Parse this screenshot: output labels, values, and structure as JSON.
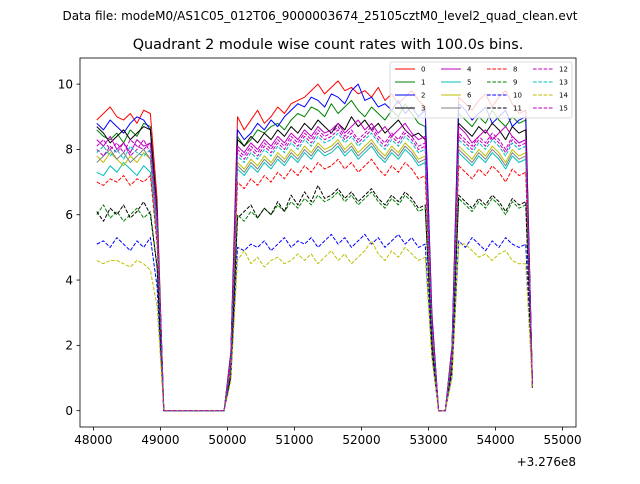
{
  "suptitle": "Data file: modeM0/AS1C05_012T06_9000003674_25105cztM0_level2_quad_clean.evt",
  "chart_data": {
    "type": "line",
    "title": "Quadrant 2 module wise count rates with 100.0s bins.",
    "xlabel": "",
    "ylabel": "",
    "x_offset_label": "+3.276e8",
    "xlim": [
      47800,
      55200
    ],
    "ylim": [
      -0.5,
      10.8
    ],
    "xticks": [
      "48000",
      "49000",
      "50000",
      "51000",
      "52000",
      "53000",
      "54000",
      "55000"
    ],
    "yticks": [
      "0",
      "2",
      "4",
      "6",
      "8",
      "10"
    ],
    "grid": false,
    "legend_position": "top-right",
    "x_start": 48050,
    "x_step": 100,
    "segments": [
      {
        "from": 48050,
        "to": 48850,
        "level": "high"
      },
      {
        "from": 48950,
        "to": 50050,
        "level": "zero"
      },
      {
        "from": 50150,
        "to": 53350,
        "level": "high"
      },
      {
        "from": 53450,
        "to": 53650,
        "level": "zero"
      },
      {
        "from": 53750,
        "to": 54850,
        "level": "high"
      }
    ],
    "series": [
      {
        "name": "0",
        "color": "#ff0000",
        "dash": false,
        "values": [
          8.9,
          9.1,
          9.3,
          9.0,
          8.9,
          9.1,
          8.8,
          9.2,
          9.1,
          6.5,
          0.0,
          0.0,
          0.0,
          0.0,
          0.0,
          0.0,
          0.0,
          0.0,
          0.0,
          0.0,
          1.8,
          9.0,
          8.6,
          8.9,
          9.2,
          8.8,
          9.0,
          9.3,
          9.1,
          9.4,
          9.5,
          9.6,
          9.8,
          10.0,
          9.7,
          9.9,
          10.1,
          9.8,
          9.9,
          9.7,
          9.8,
          9.6,
          9.9,
          9.5,
          9.7,
          9.4,
          9.6,
          9.8,
          9.5,
          9.3,
          3.0,
          0.0,
          0.0,
          2.0,
          9.6,
          9.4,
          9.2,
          9.5,
          9.7,
          9.3,
          9.6,
          9.8,
          9.4,
          9.1,
          9.2,
          0.8
        ]
      },
      {
        "name": "1",
        "color": "#008000",
        "dash": false,
        "values": [
          8.6,
          8.4,
          8.3,
          8.5,
          8.2,
          8.6,
          8.4,
          8.8,
          8.7,
          6.2,
          0.0,
          0.0,
          0.0,
          0.0,
          0.0,
          0.0,
          0.0,
          0.0,
          0.0,
          0.0,
          1.7,
          8.4,
          8.1,
          8.3,
          8.6,
          8.5,
          8.7,
          8.8,
          8.6,
          8.9,
          9.1,
          9.0,
          9.3,
          9.2,
          9.0,
          9.4,
          9.1,
          9.3,
          9.5,
          9.2,
          9.0,
          9.3,
          9.1,
          8.9,
          9.2,
          9.0,
          9.4,
          9.1,
          8.8,
          8.7,
          2.8,
          0.0,
          0.0,
          1.9,
          9.1,
          8.9,
          8.7,
          9.0,
          8.8,
          9.2,
          8.9,
          8.7,
          9.0,
          8.8,
          8.9,
          0.8
        ]
      },
      {
        "name": "2",
        "color": "#0000ff",
        "dash": false,
        "values": [
          8.8,
          8.6,
          8.9,
          8.7,
          8.5,
          8.8,
          9.0,
          8.9,
          8.6,
          6.1,
          0.0,
          0.0,
          0.0,
          0.0,
          0.0,
          0.0,
          0.0,
          0.0,
          0.0,
          0.0,
          1.7,
          8.6,
          8.3,
          8.5,
          8.8,
          8.6,
          8.9,
          8.7,
          9.0,
          9.2,
          9.4,
          9.3,
          9.6,
          9.5,
          9.3,
          9.7,
          9.6,
          9.4,
          9.8,
          10.0,
          9.5,
          9.6,
          9.3,
          9.4,
          9.2,
          9.5,
          9.1,
          9.3,
          9.0,
          9.2,
          2.9,
          0.0,
          0.0,
          1.9,
          9.4,
          9.2,
          8.9,
          9.1,
          9.3,
          8.8,
          9.0,
          9.2,
          8.7,
          8.9,
          9.0,
          0.8
        ]
      },
      {
        "name": "3",
        "color": "#000000",
        "dash": false,
        "values": [
          8.7,
          8.5,
          8.2,
          8.4,
          8.6,
          8.3,
          8.5,
          8.7,
          8.6,
          6.0,
          0.0,
          0.0,
          0.0,
          0.0,
          0.0,
          0.0,
          0.0,
          0.0,
          0.0,
          0.0,
          1.6,
          8.3,
          8.1,
          8.4,
          8.2,
          8.5,
          8.3,
          8.6,
          8.4,
          8.7,
          8.5,
          8.8,
          8.6,
          8.9,
          8.7,
          8.5,
          8.8,
          8.6,
          9.0,
          8.7,
          8.9,
          8.6,
          8.8,
          8.5,
          8.7,
          8.9,
          8.6,
          8.4,
          8.5,
          8.3,
          2.7,
          0.0,
          0.0,
          1.8,
          8.8,
          8.6,
          8.4,
          8.7,
          8.5,
          8.8,
          8.6,
          8.3,
          8.7,
          8.5,
          8.6,
          0.8
        ]
      },
      {
        "name": "4",
        "color": "#bf00bf",
        "dash": false,
        "values": [
          8.3,
          8.1,
          8.4,
          8.0,
          8.2,
          7.9,
          8.3,
          8.1,
          8.2,
          5.9,
          0.0,
          0.0,
          0.0,
          0.0,
          0.0,
          0.0,
          0.0,
          0.0,
          0.0,
          0.0,
          1.6,
          8.1,
          7.9,
          8.2,
          8.0,
          8.3,
          8.1,
          8.4,
          8.2,
          8.5,
          8.3,
          8.6,
          8.4,
          8.7,
          8.5,
          8.6,
          8.8,
          8.5,
          8.7,
          8.9,
          8.6,
          8.8,
          8.5,
          8.7,
          8.4,
          8.6,
          8.8,
          8.5,
          8.3,
          8.4,
          2.7,
          0.0,
          0.0,
          1.8,
          8.7,
          8.5,
          8.2,
          8.4,
          8.6,
          8.3,
          8.5,
          8.7,
          8.4,
          8.2,
          8.3,
          0.8
        ]
      },
      {
        "name": "5",
        "color": "#00bfbf",
        "dash": false,
        "values": [
          7.3,
          7.2,
          7.5,
          7.3,
          7.6,
          7.4,
          7.2,
          7.5,
          7.3,
          5.3,
          0.0,
          0.0,
          0.0,
          0.0,
          0.0,
          0.0,
          0.0,
          0.0,
          0.0,
          0.0,
          1.4,
          7.4,
          7.2,
          7.5,
          7.3,
          7.6,
          7.4,
          7.7,
          7.5,
          7.8,
          7.6,
          7.9,
          7.7,
          8.0,
          7.8,
          7.9,
          8.1,
          7.8,
          8.0,
          7.7,
          7.9,
          8.1,
          7.8,
          7.6,
          7.9,
          7.7,
          8.0,
          7.8,
          7.5,
          7.6,
          2.4,
          0.0,
          0.0,
          1.6,
          7.9,
          7.7,
          7.5,
          7.8,
          7.6,
          7.9,
          7.7,
          7.4,
          7.8,
          7.6,
          7.7,
          0.7
        ]
      },
      {
        "name": "6",
        "color": "#bfbf00",
        "dash": false,
        "values": [
          7.8,
          7.6,
          7.9,
          7.7,
          7.5,
          7.8,
          7.6,
          7.9,
          7.7,
          5.6,
          0.0,
          0.0,
          0.0,
          0.0,
          0.0,
          0.0,
          0.0,
          0.0,
          0.0,
          0.0,
          1.5,
          7.6,
          7.4,
          7.7,
          7.5,
          7.8,
          7.6,
          7.9,
          7.7,
          8.0,
          7.8,
          8.1,
          7.9,
          8.2,
          8.0,
          8.1,
          8.3,
          8.0,
          8.2,
          7.9,
          8.1,
          8.3,
          8.0,
          7.8,
          8.1,
          7.9,
          8.2,
          8.0,
          7.7,
          7.8,
          2.5,
          0.0,
          0.0,
          1.7,
          8.1,
          7.9,
          7.7,
          8.0,
          7.8,
          8.1,
          7.9,
          7.6,
          8.0,
          7.8,
          7.9,
          0.7
        ]
      },
      {
        "name": "7",
        "color": "#808080",
        "dash": false,
        "values": [
          7.6,
          7.8,
          8.0,
          7.7,
          7.9,
          7.6,
          7.8,
          8.0,
          7.7,
          5.5,
          0.0,
          0.0,
          0.0,
          0.0,
          0.0,
          0.0,
          0.0,
          0.0,
          0.0,
          0.0,
          1.5,
          7.5,
          7.3,
          7.6,
          7.4,
          7.7,
          7.5,
          7.8,
          7.6,
          7.9,
          7.7,
          8.0,
          7.8,
          8.1,
          7.9,
          8.0,
          8.2,
          7.9,
          8.1,
          7.8,
          8.0,
          8.2,
          7.9,
          7.7,
          8.0,
          7.8,
          8.1,
          7.9,
          7.6,
          7.7,
          2.5,
          0.0,
          0.0,
          1.7,
          8.0,
          7.8,
          7.6,
          7.9,
          7.7,
          8.0,
          7.8,
          7.5,
          7.9,
          7.7,
          7.8,
          0.7
        ]
      },
      {
        "name": "8",
        "color": "#ff0000",
        "dash": true,
        "values": [
          7.0,
          6.9,
          7.1,
          7.0,
          7.2,
          6.9,
          7.1,
          7.0,
          7.2,
          5.1,
          0.0,
          0.0,
          0.0,
          0.0,
          0.0,
          0.0,
          0.0,
          0.0,
          0.0,
          0.0,
          1.3,
          7.0,
          6.8,
          7.1,
          6.9,
          7.2,
          7.0,
          7.3,
          7.1,
          7.4,
          7.2,
          7.5,
          7.3,
          7.6,
          7.4,
          7.5,
          7.7,
          7.4,
          7.6,
          7.3,
          7.5,
          7.7,
          7.4,
          7.2,
          7.5,
          7.3,
          7.6,
          7.4,
          7.1,
          7.2,
          2.3,
          0.0,
          0.0,
          1.5,
          7.5,
          7.3,
          7.1,
          7.4,
          7.2,
          7.5,
          7.3,
          7.0,
          7.4,
          7.2,
          7.3,
          0.7
        ]
      },
      {
        "name": "9",
        "color": "#008000",
        "dash": true,
        "values": [
          6.0,
          6.3,
          5.9,
          6.1,
          5.8,
          6.0,
          6.2,
          5.9,
          6.1,
          4.4,
          0.0,
          0.0,
          0.0,
          0.0,
          0.0,
          0.0,
          0.0,
          0.0,
          0.0,
          0.0,
          1.1,
          6.0,
          5.8,
          6.1,
          5.9,
          6.2,
          6.0,
          6.3,
          6.1,
          6.4,
          6.2,
          6.5,
          6.3,
          6.6,
          6.4,
          6.5,
          6.7,
          6.4,
          6.6,
          6.3,
          6.5,
          6.7,
          6.4,
          6.2,
          6.5,
          6.3,
          6.6,
          6.4,
          6.1,
          6.2,
          2.0,
          0.0,
          0.0,
          1.3,
          6.5,
          6.3,
          6.1,
          6.4,
          6.2,
          6.5,
          6.3,
          6.0,
          6.4,
          6.2,
          6.3,
          0.7
        ]
      },
      {
        "name": "10",
        "color": "#0000ff",
        "dash": true,
        "values": [
          5.1,
          5.2,
          5.0,
          5.3,
          5.1,
          4.9,
          5.2,
          5.0,
          5.3,
          3.8,
          0.0,
          0.0,
          0.0,
          0.0,
          0.0,
          0.0,
          0.0,
          0.0,
          0.0,
          0.0,
          1.0,
          5.0,
          4.9,
          5.1,
          5.0,
          5.2,
          4.9,
          5.1,
          5.3,
          5.0,
          5.2,
          5.1,
          5.3,
          5.0,
          5.2,
          5.4,
          5.1,
          5.3,
          5.0,
          5.2,
          5.4,
          5.1,
          5.3,
          5.0,
          5.2,
          5.4,
          5.1,
          5.3,
          5.0,
          5.1,
          1.7,
          0.0,
          0.0,
          1.1,
          5.2,
          5.0,
          5.3,
          5.1,
          4.9,
          5.2,
          5.0,
          5.3,
          5.1,
          5.0,
          5.1,
          0.7
        ]
      },
      {
        "name": "11",
        "color": "#000000",
        "dash": true,
        "values": [
          6.1,
          5.8,
          6.2,
          6.0,
          6.3,
          5.9,
          6.1,
          6.4,
          6.0,
          4.4,
          0.0,
          0.0,
          0.0,
          0.0,
          0.0,
          0.0,
          0.0,
          0.0,
          0.0,
          0.0,
          1.1,
          5.9,
          6.1,
          6.3,
          5.9,
          6.2,
          6.0,
          6.4,
          6.1,
          6.6,
          6.3,
          6.7,
          6.4,
          6.9,
          6.5,
          6.6,
          6.8,
          6.5,
          6.7,
          6.4,
          6.6,
          6.8,
          6.5,
          6.3,
          6.6,
          6.4,
          6.7,
          6.5,
          6.2,
          6.3,
          2.0,
          0.0,
          0.0,
          1.3,
          6.6,
          6.4,
          6.2,
          6.5,
          6.3,
          6.6,
          6.4,
          6.1,
          6.5,
          6.3,
          6.4,
          0.7
        ]
      },
      {
        "name": "12",
        "color": "#bf00bf",
        "dash": true,
        "values": [
          8.0,
          7.8,
          8.1,
          7.9,
          8.2,
          7.8,
          8.0,
          8.3,
          7.9,
          5.7,
          0.0,
          0.0,
          0.0,
          0.0,
          0.0,
          0.0,
          0.0,
          0.0,
          0.0,
          0.0,
          1.5,
          7.9,
          7.7,
          8.0,
          7.8,
          8.1,
          7.9,
          8.2,
          8.0,
          8.3,
          8.1,
          8.4,
          8.2,
          8.5,
          8.3,
          8.4,
          8.6,
          8.3,
          8.5,
          8.2,
          8.4,
          8.6,
          8.3,
          8.1,
          8.4,
          8.2,
          8.5,
          8.3,
          8.0,
          8.1,
          2.6,
          0.0,
          0.0,
          1.7,
          8.4,
          8.2,
          8.0,
          8.3,
          8.1,
          8.4,
          8.2,
          7.9,
          8.3,
          8.1,
          8.2,
          0.8
        ]
      },
      {
        "name": "13",
        "color": "#00bfbf",
        "dash": true,
        "values": [
          7.9,
          8.1,
          7.8,
          8.0,
          7.7,
          8.1,
          7.9,
          7.8,
          8.0,
          5.6,
          0.0,
          0.0,
          0.0,
          0.0,
          0.0,
          0.0,
          0.0,
          0.0,
          0.0,
          0.0,
          1.5,
          7.8,
          7.6,
          7.9,
          7.7,
          8.0,
          7.8,
          8.1,
          7.9,
          8.2,
          8.0,
          8.3,
          8.1,
          8.4,
          8.2,
          8.3,
          8.5,
          8.2,
          8.4,
          8.1,
          8.3,
          8.5,
          8.2,
          8.0,
          8.3,
          8.1,
          8.4,
          8.2,
          7.9,
          8.0,
          2.6,
          0.0,
          0.0,
          1.7,
          8.3,
          8.1,
          7.9,
          8.2,
          8.0,
          8.3,
          8.1,
          7.8,
          8.2,
          8.0,
          8.1,
          0.8
        ]
      },
      {
        "name": "14",
        "color": "#bfbf00",
        "dash": true,
        "values": [
          4.6,
          4.5,
          4.6,
          4.6,
          4.5,
          4.4,
          4.6,
          4.5,
          4.3,
          3.2,
          0.0,
          0.0,
          0.0,
          0.0,
          0.0,
          0.0,
          0.0,
          0.0,
          0.0,
          0.0,
          0.9,
          4.6,
          4.9,
          4.5,
          4.7,
          4.4,
          4.6,
          4.7,
          4.5,
          4.6,
          4.8,
          4.6,
          4.8,
          4.5,
          4.7,
          4.9,
          4.6,
          4.8,
          4.5,
          4.7,
          4.9,
          5.2,
          4.8,
          4.6,
          4.9,
          4.7,
          5.0,
          4.8,
          4.6,
          4.7,
          1.6,
          0.0,
          0.0,
          1.0,
          5.1,
          5.1,
          4.9,
          4.7,
          4.8,
          4.6,
          4.8,
          4.9,
          4.6,
          4.5,
          4.5,
          0.7
        ]
      },
      {
        "name": "15",
        "color": "#bf00bf",
        "dash": true,
        "values": [
          8.1,
          8.3,
          8.0,
          8.2,
          7.9,
          8.3,
          8.1,
          8.0,
          8.2,
          5.8,
          0.0,
          0.0,
          0.0,
          0.0,
          0.0,
          0.0,
          0.0,
          0.0,
          0.0,
          0.0,
          1.5,
          8.0,
          7.8,
          8.1,
          7.9,
          8.2,
          8.0,
          8.3,
          8.1,
          8.4,
          8.2,
          8.5,
          8.3,
          8.6,
          8.4,
          8.5,
          8.7,
          8.4,
          8.6,
          8.3,
          8.5,
          8.7,
          8.4,
          8.2,
          8.5,
          8.3,
          8.6,
          8.4,
          8.1,
          8.2,
          2.6,
          0.0,
          0.0,
          1.7,
          8.5,
          8.3,
          8.1,
          8.4,
          8.2,
          8.5,
          8.3,
          8.0,
          8.4,
          8.2,
          8.3,
          0.8
        ]
      }
    ]
  }
}
